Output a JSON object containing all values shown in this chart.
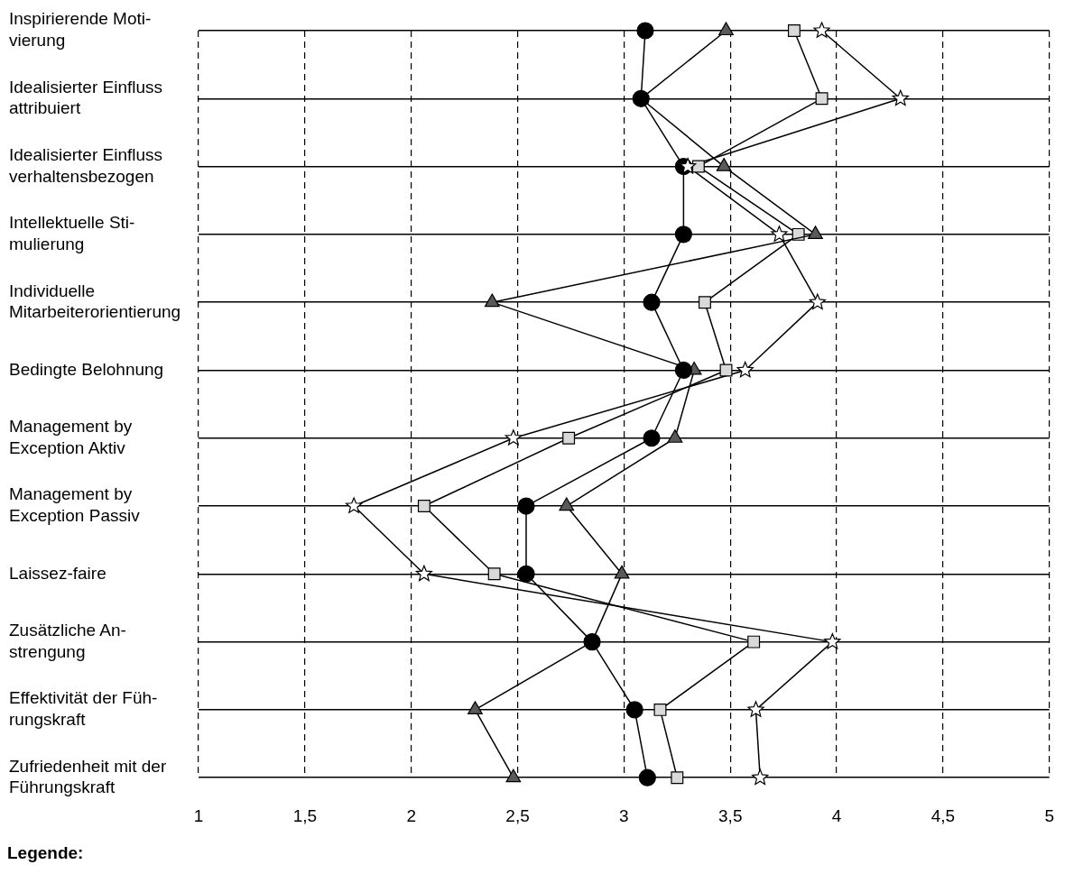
{
  "chart_data": {
    "type": "line",
    "orientation": "horizontal",
    "categories": [
      "Inspirierende Moti-\nvierung",
      "Idealisierter Einfluss\nattribuiert",
      "Idealisierter Einfluss\nverhaltensbezogen",
      "Intellektuelle Sti-\nmulierung",
      "Individuelle\nMitarbeiterorientierung",
      "Bedingte Belohnung",
      "Management by\nException Aktiv",
      "Management by\nException Passiv",
      "Laissez-faire",
      "Zusätzliche An-\nstrengung",
      "Effektivität der Füh-\nrungskraft",
      "Zufriedenheit mit der\nFührungskraft"
    ],
    "series": [
      {
        "color": "#000000",
        "marker": "circle",
        "values": [
          3.1,
          3.08,
          3.28,
          3.28,
          3.13,
          3.28,
          3.13,
          2.54,
          2.54,
          2.85,
          3.05,
          3.11
        ]
      },
      {
        "color": "#595959",
        "marker": "triangle",
        "values": [
          3.48,
          3.08,
          3.47,
          3.9,
          2.38,
          3.33,
          3.24,
          2.73,
          2.99,
          2.85,
          2.3,
          2.48
        ]
      },
      {
        "color": "#d9d9d9",
        "marker": "square",
        "values": [
          3.8,
          3.93,
          3.35,
          3.82,
          3.38,
          3.48,
          2.74,
          2.06,
          2.39,
          3.61,
          3.17,
          3.25
        ]
      },
      {
        "color": "#ffffff",
        "marker": "star",
        "values": [
          3.93,
          4.3,
          3.3,
          3.73,
          3.91,
          3.57,
          2.48,
          1.73,
          2.06,
          3.98,
          3.62,
          3.64
        ]
      }
    ],
    "xlim": [
      1,
      5
    ],
    "xticks": [
      1,
      {
        "value": 1.5,
        "label": "1,5"
      },
      2,
      {
        "value": 2.5,
        "label": "2,5"
      },
      3,
      {
        "value": 3.5,
        "label": "3,5"
      },
      4,
      {
        "value": 4.5,
        "label": "4,5"
      },
      5
    ],
    "grid": true,
    "legend": false,
    "line_style": "solid",
    "annotations": [
      "Legende:"
    ]
  }
}
